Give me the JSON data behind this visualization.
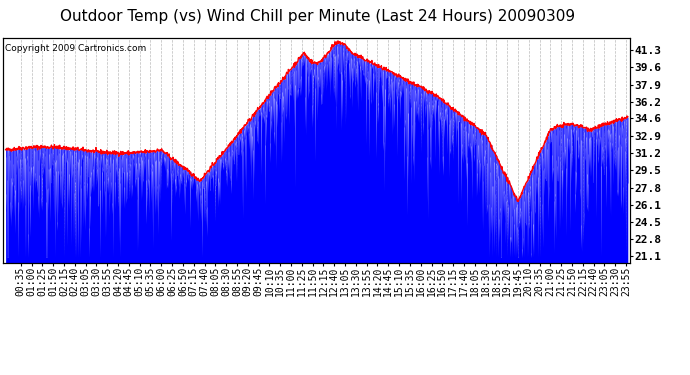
{
  "title": "Outdoor Temp (vs) Wind Chill per Minute (Last 24 Hours) 20090309",
  "copyright": "Copyright 2009 Cartronics.com",
  "ylabel_right": [
    "41.3",
    "39.6",
    "37.9",
    "36.2",
    "34.6",
    "32.9",
    "31.2",
    "29.5",
    "27.8",
    "26.1",
    "24.5",
    "22.8",
    "21.1"
  ],
  "yticks": [
    41.3,
    39.6,
    37.9,
    36.2,
    34.6,
    32.9,
    31.2,
    29.5,
    27.8,
    26.1,
    24.5,
    22.8,
    21.1
  ],
  "ylim": [
    20.5,
    42.5
  ],
  "ymin": 20.5,
  "ymax": 42.5,
  "bg_color": "#ffffff",
  "plot_bg_color": "#ffffff",
  "grid_color": "#aaaaaa",
  "blue_color": "#0000ff",
  "red_color": "#ff0000",
  "title_fontsize": 11,
  "copyright_fontsize": 6.5,
  "tick_fontsize": 7,
  "n_points": 1440
}
